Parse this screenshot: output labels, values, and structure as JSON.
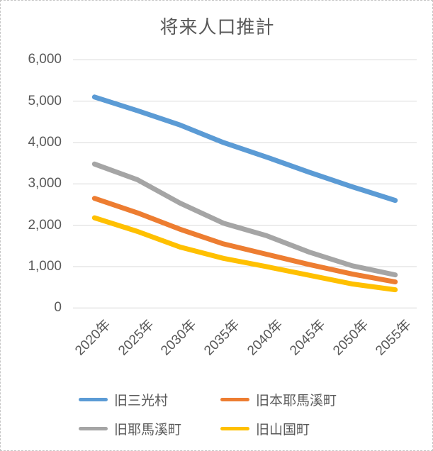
{
  "title": "将来人口推計",
  "colors": {
    "text": "#595959",
    "gridline": "#D9D9D9",
    "background": "#FFFFFF",
    "border": "#C6C6C6"
  },
  "chart_data": {
    "type": "line",
    "title": "将来人口推計",
    "categories": [
      "2020年",
      "2025年",
      "2030年",
      "2035年",
      "2040年",
      "2045年",
      "2050年",
      "2055年"
    ],
    "series": [
      {
        "name": "旧三光村",
        "color": "#5B9BD5",
        "values": [
          5100,
          4770,
          4420,
          4000,
          3650,
          3280,
          2930,
          2600
        ]
      },
      {
        "name": "旧本耶馬溪町",
        "color": "#ED7D31",
        "values": [
          2650,
          2300,
          1900,
          1550,
          1300,
          1050,
          820,
          630
        ]
      },
      {
        "name": "旧耶馬溪町",
        "color": "#A5A5A5",
        "values": [
          3480,
          3100,
          2530,
          2050,
          1750,
          1350,
          1020,
          800
        ]
      },
      {
        "name": "旧山国町",
        "color": "#FFC000",
        "values": [
          2180,
          1850,
          1470,
          1200,
          1000,
          790,
          580,
          440
        ]
      }
    ],
    "ylim": [
      0,
      6000
    ],
    "ytick_labels": [
      "6,000",
      "5,000",
      "4,000",
      "3,000",
      "2,000",
      "1,000",
      "0"
    ],
    "xlabel": "",
    "ylabel": "",
    "grid": true,
    "legend_position": "bottom"
  }
}
